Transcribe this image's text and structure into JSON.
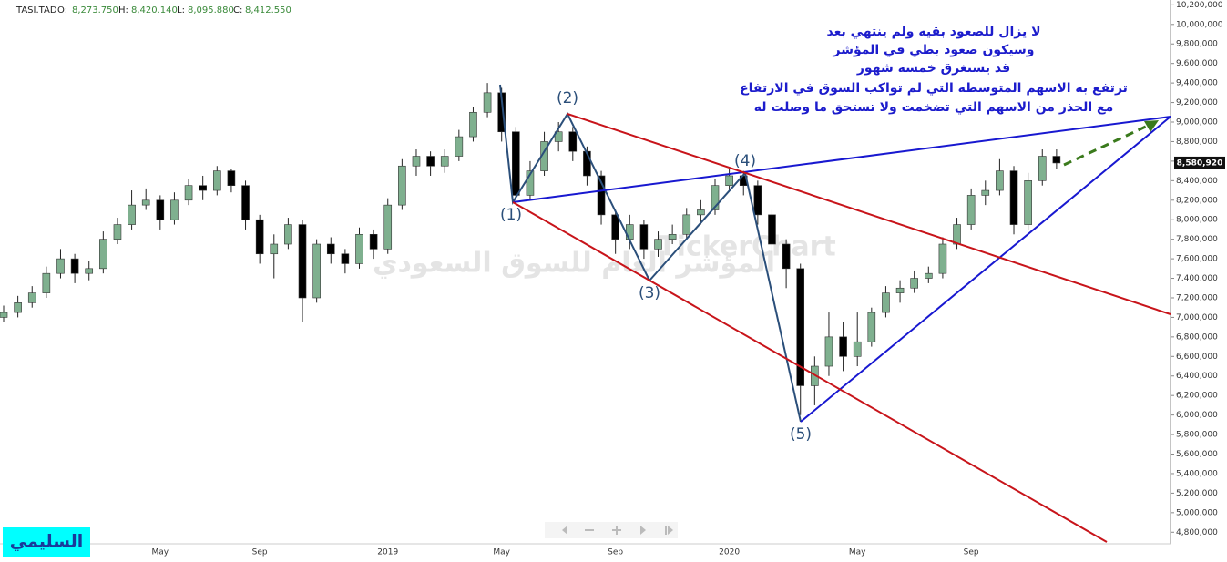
{
  "header": {
    "symbol": "TASI.TAD",
    "open_label": "O:",
    "open": "8,273.750",
    "high_label": "H:",
    "high": "8,420.140",
    "low_label": "L:",
    "low": "8,095.880",
    "close_label": "C:",
    "close": "8,412.550"
  },
  "watermark": {
    "brand": "TickerChart",
    "text": "المؤشر العام للسوق السعودي"
  },
  "author": "السليمي",
  "notes": [
    "لا يزال للصعود بقيه ولم ينتهي بعد",
    "وسيكون صعود بطي في المؤشر",
    "قد يستغرق خمسة شهور",
    "ترتفع به الاسهم المتوسطه التي لم تواكب السوق في الارتفاع",
    "مع الحذر من الاسهم التي تضخمت ولا تستحق ما وصلت له"
  ],
  "waves": [
    "(1)",
    "(2)",
    "(3)",
    "(4)",
    "(5)"
  ],
  "chart_data": {
    "type": "candlestick",
    "categories": [
      null,
      null,
      null,
      null,
      null,
      null,
      null,
      null,
      null,
      null,
      null,
      "May",
      null,
      null,
      null,
      null,
      null,
      null,
      "Sep",
      null,
      null,
      null,
      null,
      null,
      null,
      null,
      null,
      "2019",
      null,
      null,
      null,
      null,
      null,
      null,
      null,
      "May",
      null,
      null,
      null,
      null,
      null,
      null,
      null,
      "Sep",
      null,
      null,
      null,
      null,
      null,
      null,
      null,
      "2020",
      null,
      null,
      null,
      null,
      null,
      null,
      null,
      null,
      "May",
      null,
      null,
      null,
      null,
      null,
      null,
      null,
      "Sep",
      null,
      null,
      null,
      null,
      null,
      null
    ],
    "open": [
      7000000,
      7050000,
      7150000,
      7250000,
      7450000,
      7600000,
      7450000,
      7500000,
      7800000,
      7950000,
      8150000,
      8200000,
      8000000,
      8200000,
      8350000,
      8300000,
      8500000,
      8350000,
      8000000,
      7650000,
      7750000,
      7950000,
      7200000,
      7750000,
      7650000,
      7550000,
      7850000,
      7700000,
      8150000,
      8550000,
      8650000,
      8550000,
      8650000,
      8850000,
      9100000,
      9300000,
      8900000,
      8250000,
      8500000,
      8800000,
      8900000,
      8700000,
      8450000,
      8050000,
      7800000,
      7950000,
      7700000,
      7800000,
      7850000,
      8050000,
      8100000,
      8350000,
      8450000,
      8350000,
      8050000,
      7750000,
      7500000,
      6300000,
      6500000,
      6800000,
      6600000,
      6750000,
      7050000,
      7250000,
      7300000,
      7400000,
      7450000,
      7750000,
      7950000,
      8250000,
      8300000,
      8500000,
      7950000,
      8400000,
      8650000
    ],
    "high": [
      7120000,
      7220000,
      7320000,
      7520000,
      7700000,
      7650000,
      7580000,
      7880000,
      8020000,
      8300000,
      8320000,
      8250000,
      8280000,
      8420000,
      8450000,
      8550000,
      8520000,
      8400000,
      8050000,
      7850000,
      8020000,
      8000000,
      7800000,
      7820000,
      7700000,
      7920000,
      7900000,
      8220000,
      8620000,
      8720000,
      8700000,
      8720000,
      8920000,
      9150000,
      9400000,
      9350000,
      8950000,
      8600000,
      8900000,
      9000000,
      8950000,
      8750000,
      8500000,
      8100000,
      8050000,
      8000000,
      7880000,
      7950000,
      8120000,
      8200000,
      8420000,
      8520000,
      8500000,
      8400000,
      8100000,
      7800000,
      7550000,
      6600000,
      7050000,
      6950000,
      7050000,
      7100000,
      7320000,
      7380000,
      7480000,
      7520000,
      7820000,
      8020000,
      8320000,
      8400000,
      8620000,
      8550000,
      8480000,
      8720000,
      8720000
    ],
    "low": [
      6950000,
      7000000,
      7100000,
      7200000,
      7400000,
      7350000,
      7380000,
      7450000,
      7750000,
      7900000,
      8100000,
      7900000,
      7950000,
      8150000,
      8200000,
      8250000,
      8280000,
      7900000,
      7550000,
      7400000,
      7700000,
      6950000,
      7150000,
      7550000,
      7450000,
      7500000,
      7600000,
      7650000,
      8100000,
      8450000,
      8450000,
      8480000,
      8600000,
      8800000,
      9050000,
      8800000,
      8150000,
      8200000,
      8450000,
      8700000,
      8600000,
      8350000,
      7950000,
      7650000,
      7700000,
      7600000,
      7620000,
      7750000,
      7800000,
      7950000,
      8050000,
      8300000,
      8250000,
      7950000,
      7650000,
      7300000,
      6000000,
      6100000,
      6400000,
      6450000,
      6500000,
      6700000,
      7000000,
      7150000,
      7250000,
      7350000,
      7400000,
      7700000,
      7900000,
      8150000,
      8250000,
      7850000,
      7900000,
      8350000,
      8520000
    ],
    "close": [
      7050000,
      7150000,
      7250000,
      7450000,
      7600000,
      7450000,
      7500000,
      7800000,
      7950000,
      8150000,
      8200000,
      8000000,
      8200000,
      8350000,
      8300000,
      8500000,
      8350000,
      8000000,
      7650000,
      7750000,
      7950000,
      7200000,
      7750000,
      7650000,
      7550000,
      7850000,
      7700000,
      8150000,
      8550000,
      8650000,
      8550000,
      8650000,
      8850000,
      9100000,
      9300000,
      8900000,
      8250000,
      8500000,
      8800000,
      8900000,
      8700000,
      8450000,
      8050000,
      7800000,
      7950000,
      7700000,
      7800000,
      7850000,
      8050000,
      8100000,
      8350000,
      8450000,
      8350000,
      8050000,
      7750000,
      7500000,
      6300000,
      6500000,
      6800000,
      6600000,
      6750000,
      7050000,
      7250000,
      7300000,
      7400000,
      7450000,
      7750000,
      7950000,
      8250000,
      8300000,
      8500000,
      7950000,
      8400000,
      8650000,
      8580920
    ],
    "last_label": "8,580,920",
    "up_color": "#7fb08f",
    "down_color": "#000000",
    "ylim": [
      4700000,
      10250000
    ],
    "yticks": [
      {
        "value": 4800000,
        "label": "4,800,000"
      },
      {
        "value": 5000000,
        "label": "5,000,000"
      },
      {
        "value": 5200000,
        "label": "5,200,000"
      },
      {
        "value": 5400000,
        "label": "5,400,000"
      },
      {
        "value": 5600000,
        "label": "5,600,000"
      },
      {
        "value": 5800000,
        "label": "5,800,000"
      },
      {
        "value": 6000000,
        "label": "6,000,000"
      },
      {
        "value": 6200000,
        "label": "6,200,000"
      },
      {
        "value": 6400000,
        "label": "6,400,000"
      },
      {
        "value": 6600000,
        "label": "6,600,000"
      },
      {
        "value": 6800000,
        "label": "6,800,000"
      },
      {
        "value": 7000000,
        "label": "7,000,000"
      },
      {
        "value": 7200000,
        "label": "7,200,000"
      },
      {
        "value": 7400000,
        "label": "7,400,000"
      },
      {
        "value": 7600000,
        "label": "7,600,000"
      },
      {
        "value": 7800000,
        "label": "7,800,000"
      },
      {
        "value": 8000000,
        "label": "8,000,000"
      },
      {
        "value": 8200000,
        "label": "8,200,000"
      },
      {
        "value": 8400000,
        "label": "8,400,000"
      },
      {
        "value": 8600000,
        "label": "8,600,000"
      },
      {
        "value": 8800000,
        "label": "8,800,000"
      },
      {
        "value": 9000000,
        "label": "9,000,000"
      },
      {
        "value": 9200000,
        "label": "9,200,000"
      },
      {
        "value": 9400000,
        "label": "9,400,000"
      },
      {
        "value": 9600000,
        "label": "9,600,000"
      },
      {
        "value": 9800000,
        "label": "9,800,000"
      },
      {
        "value": 10000000,
        "label": "10,000,000"
      },
      {
        "value": 10200000,
        "label": "10,200,000"
      }
    ]
  }
}
